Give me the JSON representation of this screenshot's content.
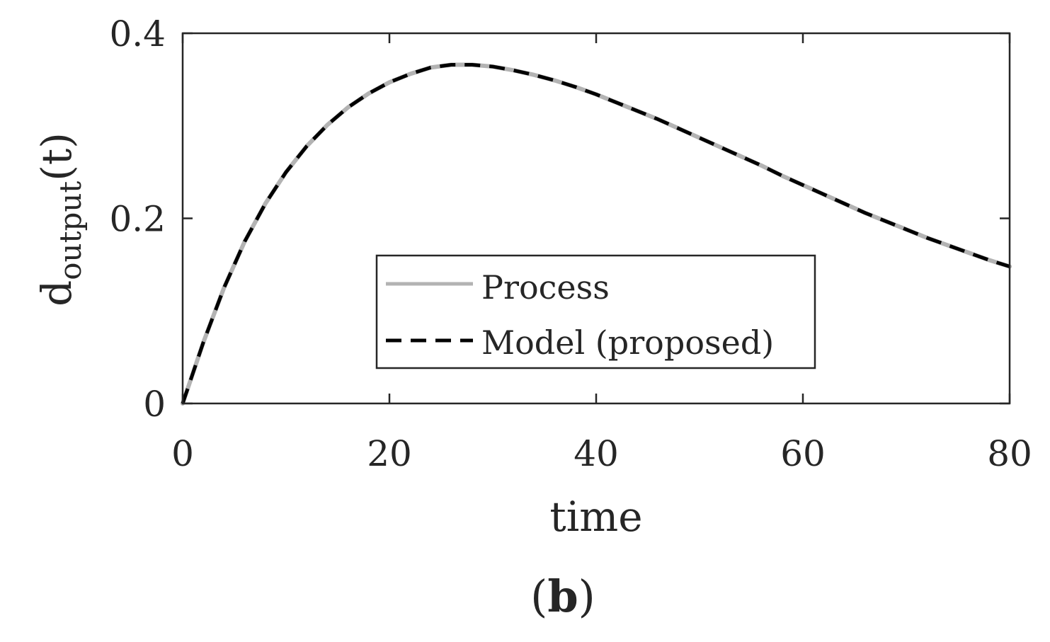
{
  "figure": {
    "panel_label_open": "(",
    "panel_label_letter": "b",
    "panel_label_close": ")"
  },
  "chart_data": {
    "type": "line",
    "title": "",
    "xlabel": "time",
    "ylabel_main": "d",
    "ylabel_sub": "output",
    "ylabel_arg": "(t)",
    "xlim": [
      0,
      80
    ],
    "ylim": [
      0,
      0.4
    ],
    "xticks": [
      0,
      20,
      40,
      60,
      80
    ],
    "xtick_labels": [
      "0",
      "20",
      "40",
      "60",
      "80"
    ],
    "yticks": [
      0,
      0.2,
      0.4
    ],
    "ytick_labels": [
      "0",
      "0.2",
      "0.4"
    ],
    "grid": false,
    "legend_position": "center",
    "x": [
      0,
      2,
      4,
      6,
      8,
      10,
      12,
      14,
      16,
      18,
      20,
      22,
      24,
      26,
      28,
      30,
      32,
      34,
      36,
      38,
      40,
      42,
      44,
      46,
      48,
      50,
      52,
      54,
      56,
      58,
      60,
      62,
      64,
      66,
      68,
      70,
      72,
      74,
      76,
      78,
      80
    ],
    "series": [
      {
        "name": "Process",
        "color": "#b3b3b3",
        "style": "solid",
        "values": [
          0,
          0.066,
          0.125,
          0.175,
          0.216,
          0.25,
          0.278,
          0.301,
          0.32,
          0.335,
          0.347,
          0.356,
          0.363,
          0.366,
          0.366,
          0.364,
          0.36,
          0.355,
          0.349,
          0.342,
          0.334,
          0.325,
          0.316,
          0.307,
          0.297,
          0.287,
          0.277,
          0.267,
          0.257,
          0.246,
          0.236,
          0.226,
          0.216,
          0.206,
          0.197,
          0.188,
          0.179,
          0.171,
          0.163,
          0.155,
          0.148
        ]
      },
      {
        "name": "Model (proposed)",
        "color": "#000000",
        "style": "dashed",
        "values": [
          0,
          0.066,
          0.125,
          0.175,
          0.216,
          0.25,
          0.278,
          0.301,
          0.32,
          0.335,
          0.347,
          0.356,
          0.363,
          0.366,
          0.366,
          0.364,
          0.36,
          0.355,
          0.349,
          0.342,
          0.334,
          0.325,
          0.316,
          0.307,
          0.297,
          0.287,
          0.277,
          0.267,
          0.257,
          0.246,
          0.236,
          0.226,
          0.216,
          0.206,
          0.197,
          0.188,
          0.179,
          0.171,
          0.163,
          0.155,
          0.148
        ]
      }
    ]
  }
}
